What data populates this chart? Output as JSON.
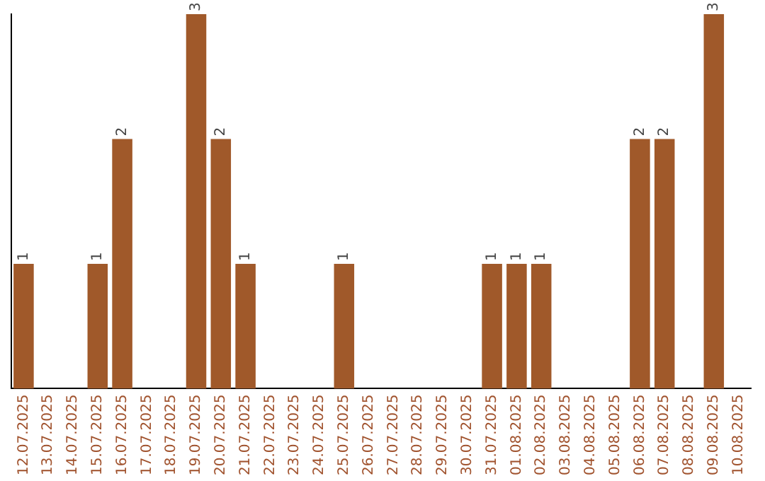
{
  "chart_data": {
    "type": "bar",
    "categories": [
      "12.07.2025",
      "13.07.2025",
      "14.07.2025",
      "15.07.2025",
      "16.07.2025",
      "17.07.2025",
      "18.07.2025",
      "19.07.2025",
      "20.07.2025",
      "21.07.2025",
      "22.07.2025",
      "23.07.2025",
      "24.07.2025",
      "25.07.2025",
      "26.07.2025",
      "27.07.2025",
      "28.07.2025",
      "29.07.2025",
      "30.07.2025",
      "31.07.2025",
      "01.08.2025",
      "02.08.2025",
      "03.08.2025",
      "04.08.2025",
      "05.08.2025",
      "06.08.2025",
      "07.08.2025",
      "08.08.2025",
      "09.08.2025",
      "10.08.2025"
    ],
    "values": [
      1,
      0,
      0,
      1,
      2,
      0,
      0,
      3,
      2,
      1,
      0,
      0,
      0,
      1,
      0,
      0,
      0,
      0,
      0,
      1,
      1,
      1,
      0,
      0,
      0,
      2,
      2,
      0,
      3,
      0
    ],
    "value_labels": [
      "1",
      null,
      null,
      "1",
      "2",
      null,
      null,
      "3",
      "2",
      "1",
      null,
      null,
      null,
      "1",
      null,
      null,
      null,
      null,
      null,
      "1",
      "1",
      "1",
      null,
      null,
      null,
      "2",
      "2",
      null,
      "3",
      null
    ],
    "color": "#a0592a",
    "grid": false,
    "legend": false
  }
}
